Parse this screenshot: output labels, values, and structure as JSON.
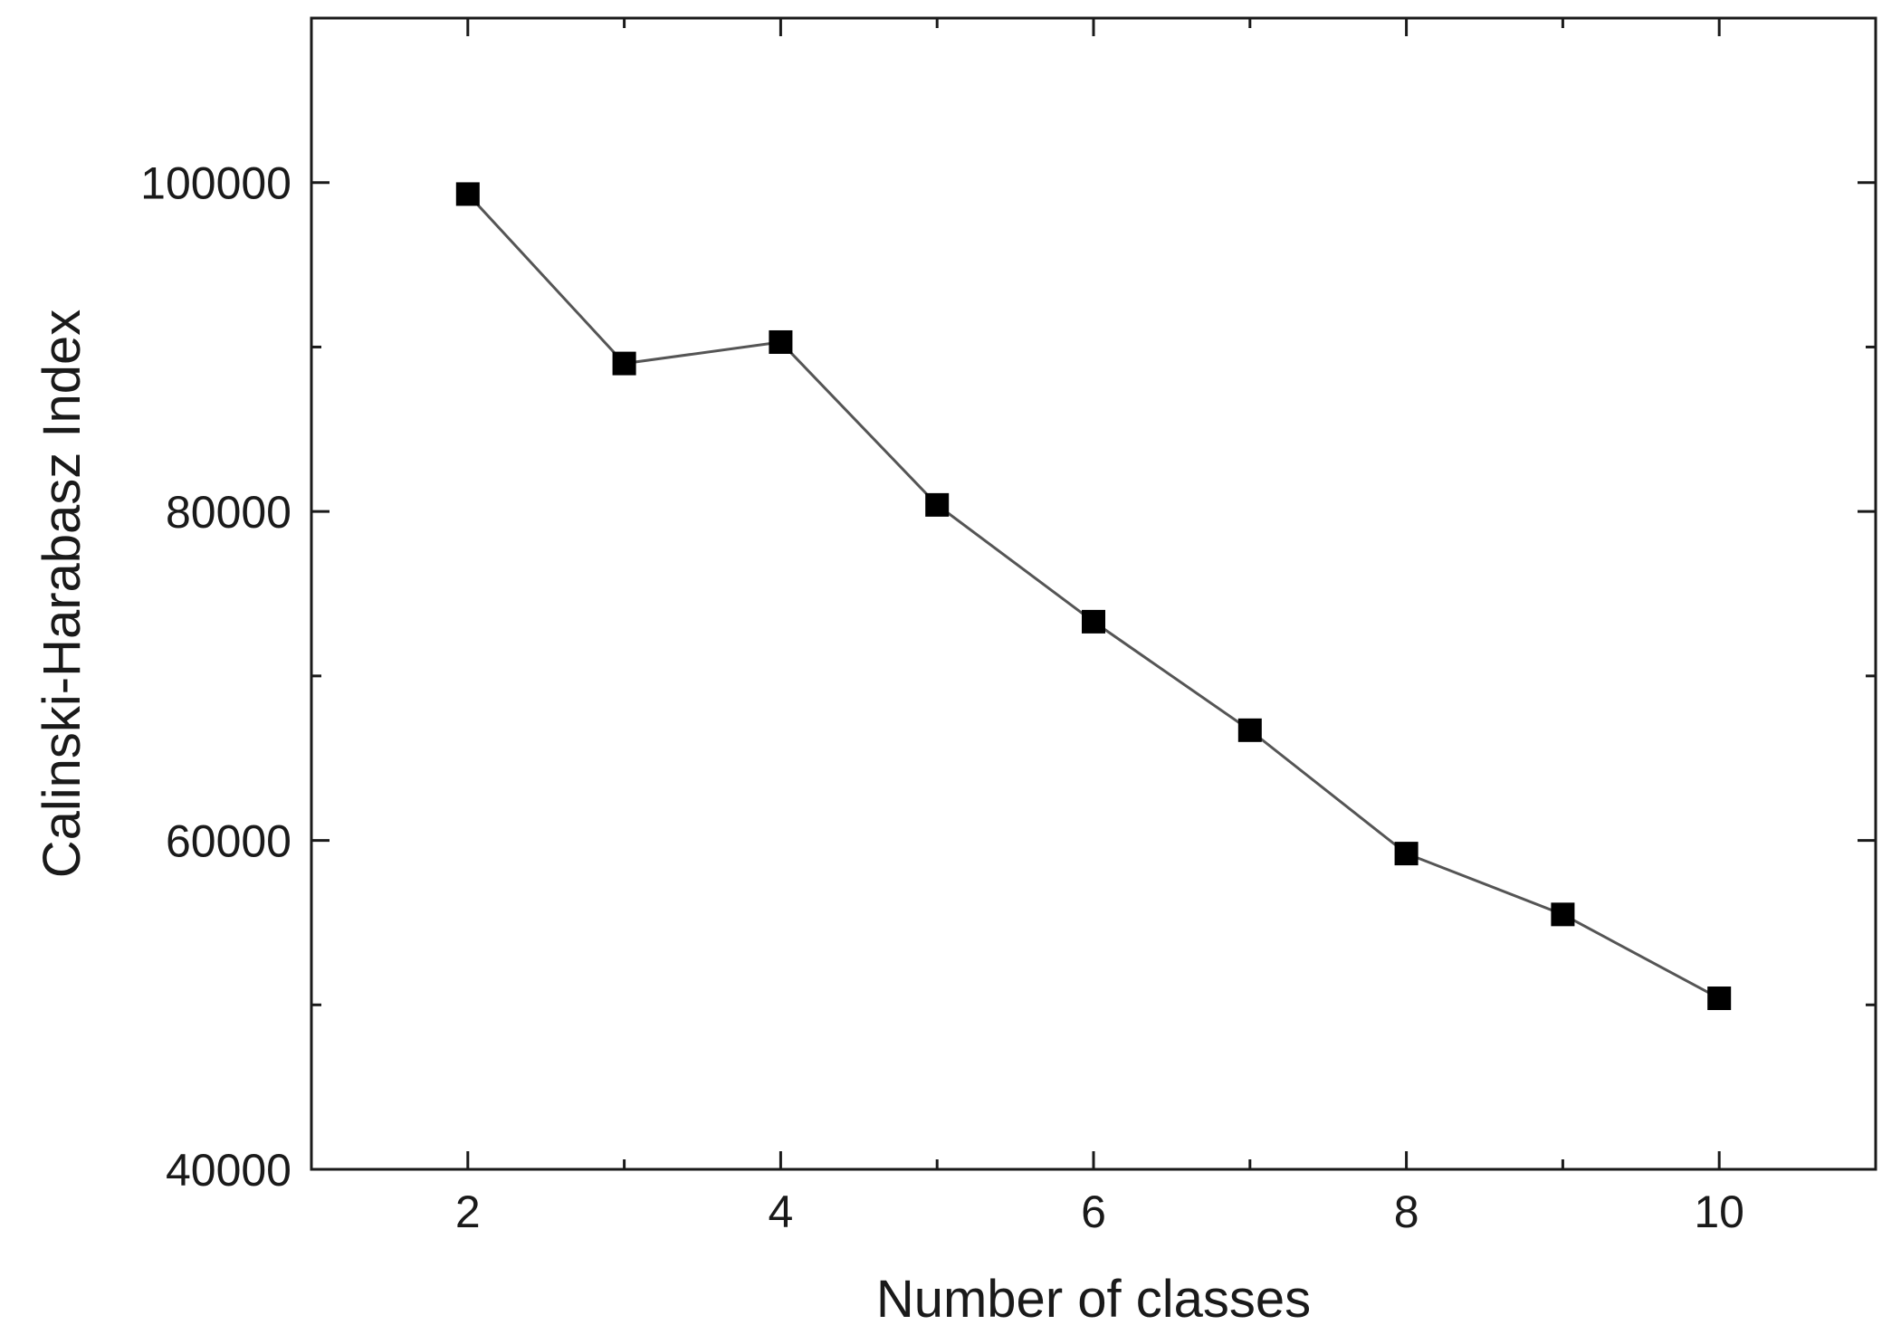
{
  "chart_data": {
    "type": "line",
    "title": "",
    "xlabel": "Number of classes",
    "ylabel": "Calinski-Harabasz Index",
    "xlim": [
      1,
      11
    ],
    "ylim": [
      40000,
      110000
    ],
    "x_ticks": [
      2,
      4,
      6,
      8,
      10
    ],
    "x_tick_labels": [
      "2",
      "4",
      "6",
      "8",
      "10"
    ],
    "x_minor_ticks": [
      3,
      5,
      7,
      9
    ],
    "y_ticks": [
      40000,
      60000,
      80000,
      100000
    ],
    "y_tick_labels": [
      "40000",
      "60000",
      "80000",
      "100000"
    ],
    "y_minor_ticks": [
      50000,
      70000,
      90000
    ],
    "grid": false,
    "legend": "none",
    "series": [
      {
        "marker": "square",
        "color": "#000000",
        "line_color": "#555555",
        "x": [
          2,
          3,
          4,
          5,
          6,
          7,
          8,
          9,
          10
        ],
        "values": [
          99300,
          89000,
          90300,
          80400,
          73300,
          66700,
          59200,
          55500,
          50400
        ]
      }
    ]
  }
}
